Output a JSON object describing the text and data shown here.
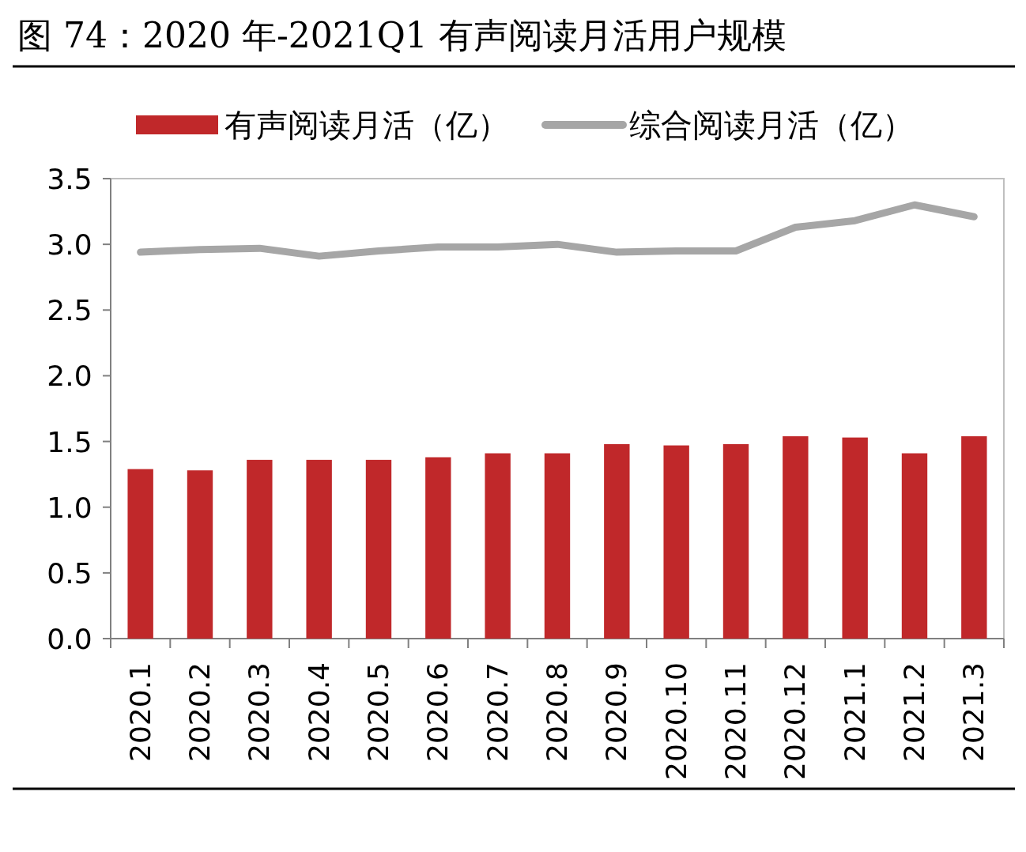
{
  "chart_data": {
    "type": "bar",
    "title": "图 74：2020 年-2021Q1 有声阅读月活用户规模",
    "categories": [
      "2020.1",
      "2020.2",
      "2020.3",
      "2020.4",
      "2020.5",
      "2020.6",
      "2020.7",
      "2020.8",
      "2020.9",
      "2020.10",
      "2020.11",
      "2020.12",
      "2021.1",
      "2021.2",
      "2021.3"
    ],
    "series": [
      {
        "name": "有声阅读月活（亿）",
        "color": "#c0282a",
        "values": [
          1.29,
          1.28,
          1.36,
          1.36,
          1.36,
          1.38,
          1.41,
          1.41,
          1.48,
          1.47,
          1.48,
          1.54,
          1.53,
          1.41,
          1.54
        ]
      },
      {
        "name": "综合阅读月活（亿）",
        "type": "line",
        "color": "#a6a6a6",
        "values": [
          2.94,
          2.96,
          2.97,
          2.91,
          2.95,
          2.98,
          2.98,
          3.0,
          2.94,
          2.95,
          2.95,
          3.13,
          3.18,
          3.3,
          3.21
        ]
      }
    ],
    "ylim": [
      0,
      3.5
    ],
    "yticks": [
      {
        "value": 0,
        "label": "0.0"
      },
      0.5,
      {
        "value": 1,
        "label": "1.0"
      },
      1.5,
      {
        "value": 2,
        "label": "2.0"
      },
      2.5,
      {
        "value": 3,
        "label": "3.0"
      },
      3.5
    ],
    "legend": "top"
  }
}
